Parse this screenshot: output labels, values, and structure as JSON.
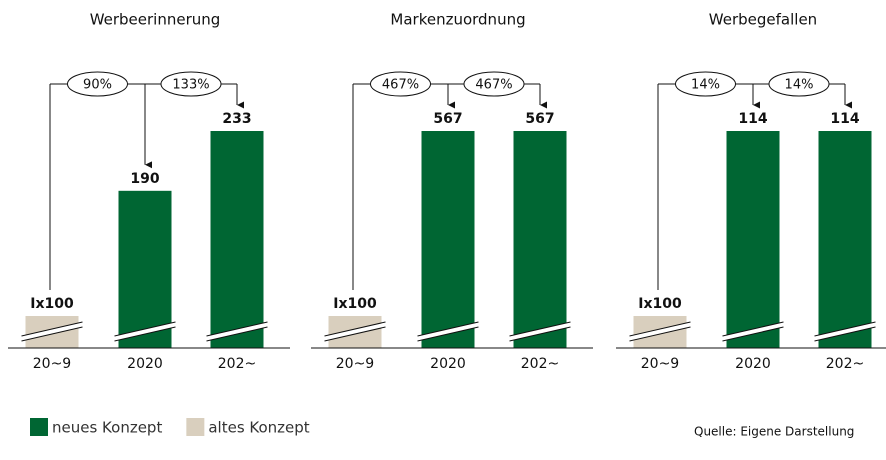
{
  "chart_data": [
    {
      "type": "bar",
      "title": "Werbeerinnerung",
      "categories": [
        "20~9",
        "2020",
        "202~"
      ],
      "values": [
        100,
        190,
        233
      ],
      "value_labels": [
        "Ix100",
        "190",
        "233"
      ],
      "colors": [
        "#d9cfbe",
        "#006633",
        "#006633"
      ],
      "changes": [
        90,
        133
      ],
      "change_labels": [
        "90%",
        "133%"
      ]
    },
    {
      "type": "bar",
      "title": "Markenzuordnung",
      "categories": [
        "20~9",
        "2020",
        "202~"
      ],
      "values": [
        100,
        567,
        567
      ],
      "value_labels": [
        "Ix100",
        "567",
        "567"
      ],
      "colors": [
        "#d9cfbe",
        "#006633",
        "#006633"
      ],
      "changes": [
        467,
        467
      ],
      "change_labels": [
        "467%",
        "467%"
      ]
    },
    {
      "type": "bar",
      "title": "Werbegefallen",
      "categories": [
        "20~9",
        "2020",
        "202~"
      ],
      "values": [
        100,
        114,
        114
      ],
      "value_labels": [
        "Ix100",
        "114",
        "114"
      ],
      "colors": [
        "#d9cfbe",
        "#006633",
        "#006633"
      ],
      "changes": [
        14,
        14
      ],
      "change_labels": [
        "14%",
        "14%"
      ]
    }
  ],
  "legend": [
    {
      "name": "neues Konzept",
      "color": "#006633"
    },
    {
      "name": "altes Konzept",
      "color": "#d9cfbe"
    }
  ],
  "source": "Quelle: Eigene Darstellung"
}
